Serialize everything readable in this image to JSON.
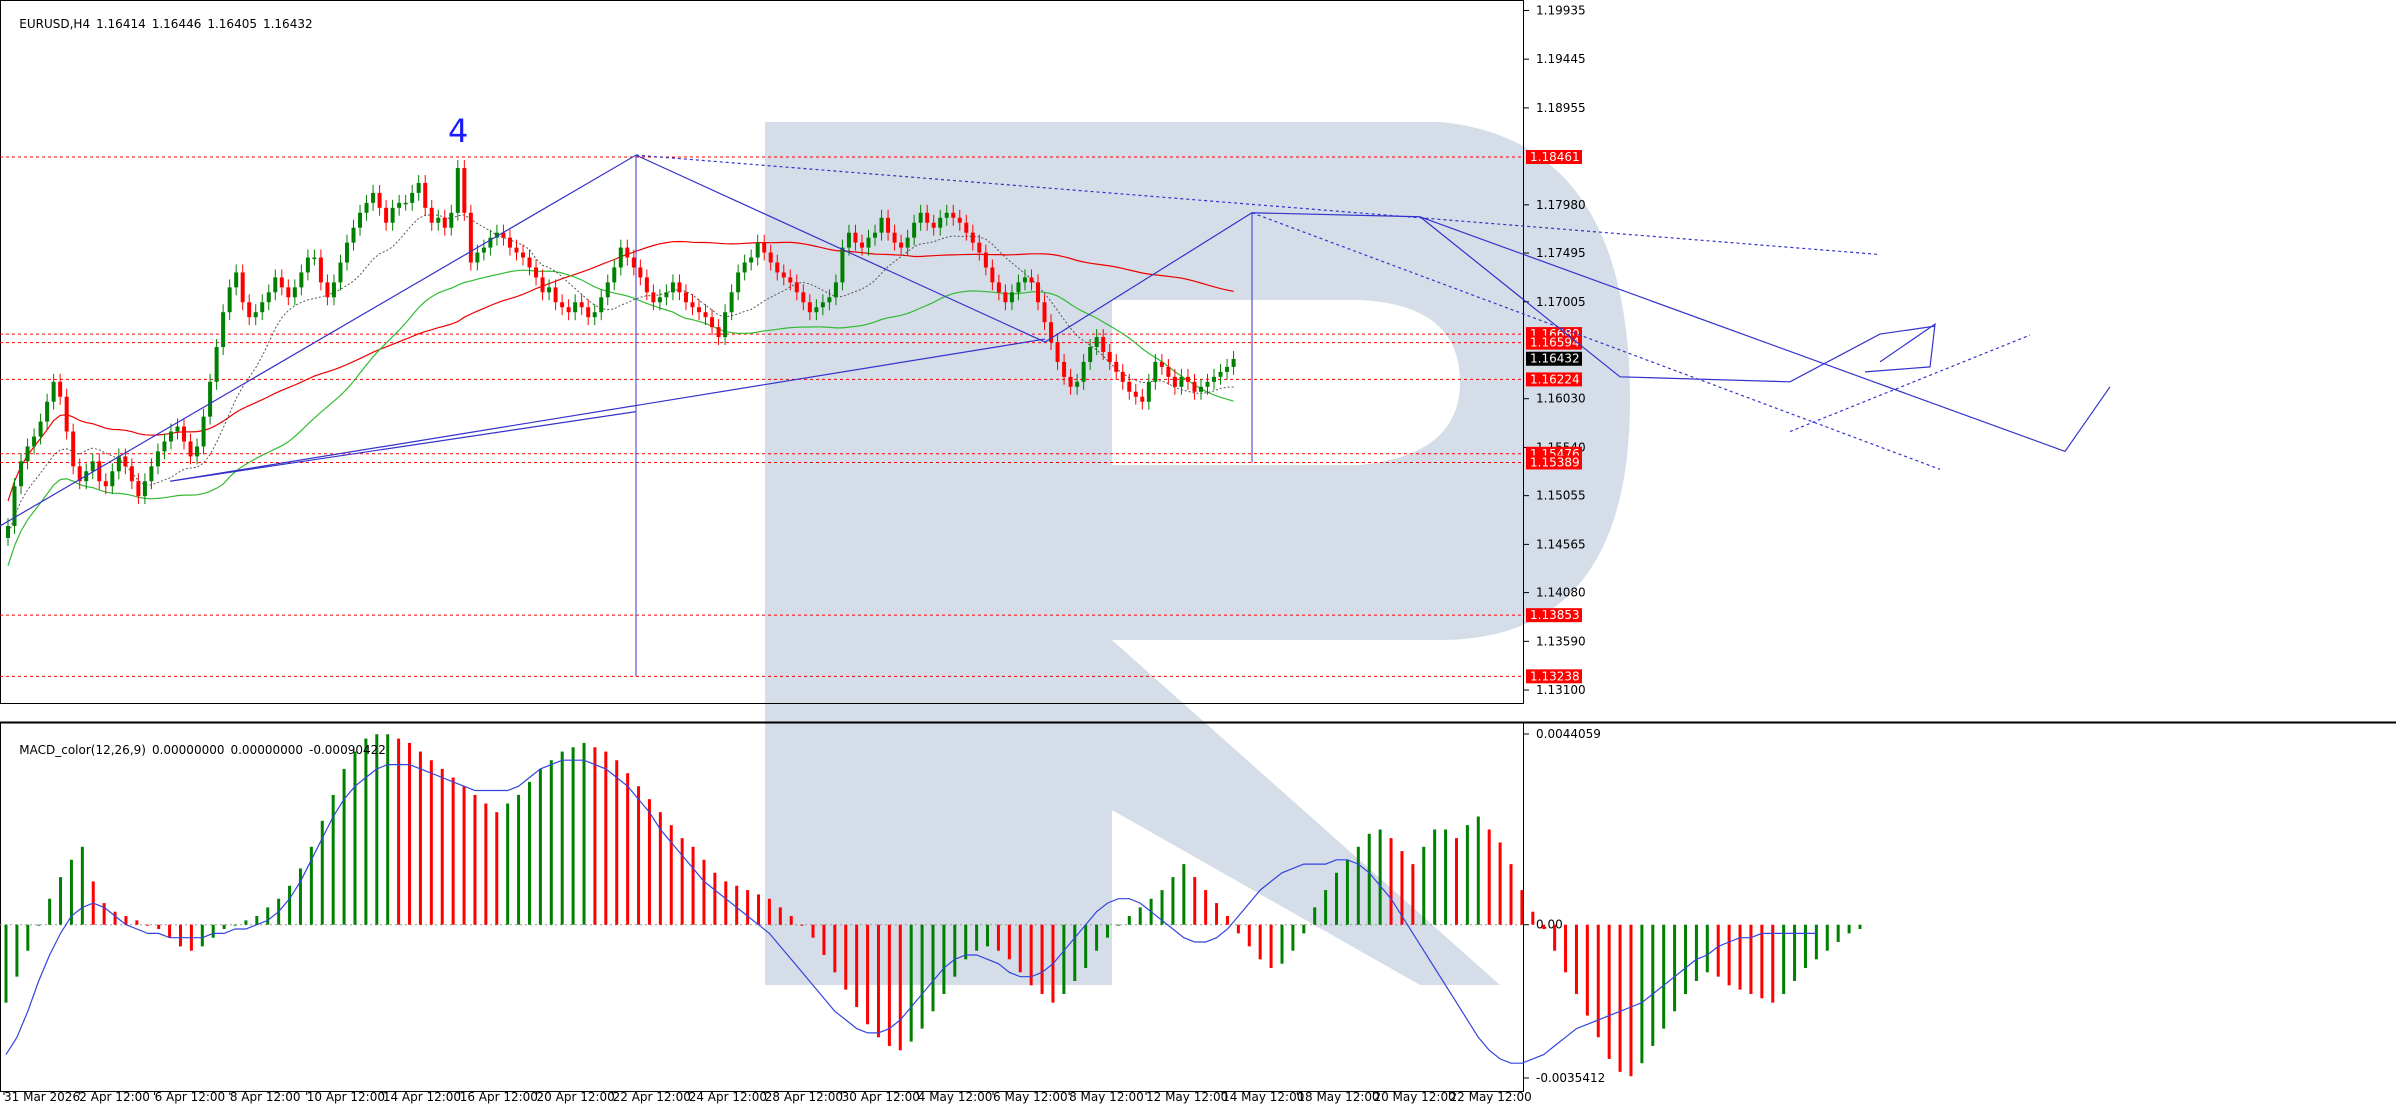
{
  "header": {
    "symbol": "EURUSD,H4",
    "open": "1.16414",
    "high": "1.16446",
    "low": "1.16405",
    "close": "1.16432"
  },
  "wave_label": "4",
  "indicator": {
    "name": "MACD_color(12,26,9)",
    "v1": "0.00000000",
    "v2": "0.00000000",
    "v3": "-0.00090422"
  },
  "colors": {
    "bull": "#008000",
    "bear": "#ff0000",
    "resistance": "#ff0000",
    "forecast": "#3333cc",
    "watermark": "#d5dde9",
    "ma_red": "#ee0000",
    "ma_green": "#33bb33"
  },
  "chart_data": [
    {
      "type": "candlestick",
      "title": "",
      "x_ticks": [
        "31 Mar 2026",
        "2 Apr 12:00",
        "6 Apr 12:00",
        "8 Apr 12:00",
        "10 Apr 12:00",
        "14 Apr 12:00",
        "16 Apr 12:00",
        "20 Apr 12:00",
        "22 Apr 12:00",
        "24 Apr 12:00",
        "28 Apr 12:00",
        "30 Apr 12:00",
        "4 May 12:00",
        "6 May 12:00",
        "8 May 12:00",
        "12 May 12:00",
        "14 May 12:00",
        "18 May 12:00",
        "20 May 12:00",
        "22 May 12:00"
      ],
      "y_ticks": [
        "1.19935",
        "1.19445",
        "1.18955",
        "1.17980",
        "1.17495",
        "1.17005",
        "1.16030",
        "1.15540",
        "1.15055",
        "1.14565",
        "1.14080",
        "1.13590",
        "1.13100"
      ],
      "ylim": [
        1.1302,
        1.2003
      ],
      "price_marks": [
        "1.18461",
        "1.16680",
        "1.16594",
        "1.16432",
        "1.16224",
        "1.15476",
        "1.15389",
        "1.13853",
        "1.13238"
      ],
      "current_price": "1.16432",
      "closes": [
        1.1475,
        1.1515,
        1.154,
        1.1555,
        1.1565,
        1.158,
        1.16,
        1.162,
        1.1605,
        1.157,
        1.1535,
        1.152,
        1.153,
        1.154,
        1.152,
        1.1515,
        1.153,
        1.1545,
        1.1535,
        1.152,
        1.1505,
        1.152,
        1.1535,
        1.155,
        1.156,
        1.157,
        1.1575,
        1.156,
        1.1545,
        1.1555,
        1.1585,
        1.162,
        1.1655,
        1.169,
        1.1715,
        1.173,
        1.17,
        1.1685,
        1.169,
        1.17,
        1.171,
        1.1725,
        1.1715,
        1.1705,
        1.1715,
        1.173,
        1.1745,
        1.1745,
        1.172,
        1.1705,
        1.172,
        1.174,
        1.176,
        1.1775,
        1.179,
        1.18,
        1.181,
        1.1795,
        1.178,
        1.1795,
        1.18,
        1.18,
        1.181,
        1.182,
        1.1795,
        1.178,
        1.1785,
        1.1775,
        1.179,
        1.1835,
        1.179,
        1.174,
        1.175,
        1.1755,
        1.1765,
        1.177,
        1.1765,
        1.1755,
        1.175,
        1.1745,
        1.1735,
        1.1725,
        1.171,
        1.1715,
        1.17,
        1.1695,
        1.169,
        1.17,
        1.1695,
        1.1685,
        1.169,
        1.1705,
        1.172,
        1.1735,
        1.1755,
        1.1745,
        1.1735,
        1.1725,
        1.171,
        1.17,
        1.1705,
        1.171,
        1.172,
        1.171,
        1.17,
        1.1695,
        1.169,
        1.1685,
        1.1675,
        1.1665,
        1.169,
        1.171,
        1.173,
        1.174,
        1.1745,
        1.176,
        1.175,
        1.174,
        1.173,
        1.1725,
        1.172,
        1.171,
        1.17,
        1.169,
        1.1695,
        1.17,
        1.1705,
        1.172,
        1.1755,
        1.177,
        1.176,
        1.1755,
        1.1765,
        1.177,
        1.1785,
        1.177,
        1.176,
        1.1755,
        1.1765,
        1.178,
        1.179,
        1.178,
        1.1775,
        1.1785,
        1.179,
        1.1785,
        1.178,
        1.177,
        1.176,
        1.175,
        1.1735,
        1.172,
        1.171,
        1.17,
        1.171,
        1.172,
        1.1725,
        1.172,
        1.17,
        1.168,
        1.166,
        1.164,
        1.1625,
        1.1615,
        1.162,
        1.164,
        1.1655,
        1.1665,
        1.165,
        1.164,
        1.163,
        1.162,
        1.161,
        1.1605,
        1.16,
        1.162,
        1.164,
        1.1635,
        1.1625,
        1.1615,
        1.1625,
        1.162,
        1.161,
        1.1615,
        1.162,
        1.1625,
        1.163,
        1.1635,
        1.1643
      ]
    },
    {
      "type": "bar",
      "title": "MACD_color(12,26,9)",
      "y_ticks": [
        "0.0044059",
        "0.00",
        "-0.0035412"
      ],
      "ylim": [
        -0.0035412,
        0.0044059
      ],
      "histogram": [
        -0.0018,
        -0.0012,
        -0.0006,
        0.0,
        0.0006,
        0.0011,
        0.0015,
        0.0018,
        0.001,
        0.0005,
        0.0003,
        0.0002,
        0.0001,
        0.0,
        -0.0001,
        -0.0003,
        -0.0005,
        -0.0006,
        -0.0005,
        -0.0003,
        -0.0001,
        0.0,
        0.0001,
        0.0002,
        0.0004,
        0.0006,
        0.0009,
        0.0013,
        0.0018,
        0.0024,
        0.003,
        0.0036,
        0.004,
        0.0043,
        0.0044,
        0.0044,
        0.0043,
        0.0042,
        0.004,
        0.0038,
        0.0036,
        0.0034,
        0.0032,
        0.003,
        0.0028,
        0.0026,
        0.0028,
        0.003,
        0.0033,
        0.0036,
        0.0038,
        0.004,
        0.0041,
        0.0042,
        0.0041,
        0.004,
        0.0038,
        0.0035,
        0.0032,
        0.0029,
        0.0026,
        0.0023,
        0.002,
        0.0018,
        0.0015,
        0.0012,
        0.001,
        0.0009,
        0.0008,
        0.0007,
        0.0006,
        0.0004,
        0.0002,
        0.0,
        -0.0003,
        -0.0007,
        -0.0011,
        -0.0015,
        -0.0019,
        -0.0023,
        -0.0026,
        -0.0028,
        -0.0029,
        -0.0027,
        -0.0024,
        -0.002,
        -0.0016,
        -0.0012,
        -0.0008,
        -0.0006,
        -0.0005,
        -0.0006,
        -0.0008,
        -0.0011,
        -0.0014,
        -0.0016,
        -0.0018,
        -0.0016,
        -0.0013,
        -0.001,
        -0.0006,
        -0.0003,
        0.0,
        0.0002,
        0.0004,
        0.0006,
        0.0008,
        0.0011,
        0.0014,
        0.0011,
        0.0008,
        0.0005,
        0.0002,
        -0.0002,
        -0.0005,
        -0.0008,
        -0.001,
        -0.0009,
        -0.0006,
        -0.0002,
        0.0004,
        0.0008,
        0.0012,
        0.0015,
        0.0018,
        0.0021,
        0.0022,
        0.002,
        0.0017,
        0.0014,
        0.0018,
        0.0022,
        0.0022,
        0.002,
        0.0023,
        0.0025,
        0.0022,
        0.0019,
        0.0014,
        0.0008,
        0.0003,
        -0.0001,
        -0.0006,
        -0.0011,
        -0.0016,
        -0.0021,
        -0.0026,
        -0.0031,
        -0.0034,
        -0.0035,
        -0.0032,
        -0.0028,
        -0.0024,
        -0.002,
        -0.0016,
        -0.0013,
        -0.0011,
        -0.0012,
        -0.0014,
        -0.0015,
        -0.0016,
        -0.0017,
        -0.0018,
        -0.0016,
        -0.0013,
        -0.001,
        -0.0008,
        -0.0006,
        -0.0004,
        -0.0002,
        -0.0001
      ],
      "signal": [
        -0.003,
        -0.0026,
        -0.002,
        -0.0013,
        -0.0007,
        -0.0002,
        0.0002,
        0.0004,
        0.0005,
        0.0004,
        0.0002,
        0.0,
        -0.0001,
        -0.0002,
        -0.0002,
        -0.0003,
        -0.0003,
        -0.0003,
        -0.0003,
        -0.0002,
        -0.0002,
        -0.0001,
        -0.0001,
        0.0,
        0.0001,
        0.0003,
        0.0006,
        0.001,
        0.0015,
        0.002,
        0.0025,
        0.0029,
        0.0032,
        0.0034,
        0.0036,
        0.0037,
        0.0037,
        0.0037,
        0.0036,
        0.0035,
        0.0034,
        0.0033,
        0.0032,
        0.0031,
        0.0031,
        0.0031,
        0.0031,
        0.0032,
        0.0034,
        0.0036,
        0.0037,
        0.0038,
        0.0038,
        0.0038,
        0.0037,
        0.0036,
        0.0034,
        0.0032,
        0.0029,
        0.0026,
        0.0022,
        0.0019,
        0.0016,
        0.0013,
        0.001,
        0.0008,
        0.0006,
        0.0004,
        0.0002,
        0.0,
        -0.0002,
        -0.0005,
        -0.0008,
        -0.0011,
        -0.0014,
        -0.0017,
        -0.002,
        -0.0022,
        -0.0024,
        -0.0025,
        -0.0025,
        -0.0024,
        -0.0022,
        -0.0019,
        -0.0016,
        -0.0013,
        -0.001,
        -0.0008,
        -0.0007,
        -0.0007,
        -0.0008,
        -0.0009,
        -0.0011,
        -0.0012,
        -0.0012,
        -0.0011,
        -0.0009,
        -0.0006,
        -0.0003,
        0.0,
        0.0003,
        0.0005,
        0.0006,
        0.0006,
        0.0005,
        0.0003,
        0.0001,
        -0.0001,
        -0.0003,
        -0.0004,
        -0.0004,
        -0.0003,
        -0.0001,
        0.0002,
        0.0005,
        0.0008,
        0.001,
        0.0012,
        0.0013,
        0.0014,
        0.0014,
        0.0014,
        0.0015,
        0.0015,
        0.0014,
        0.0012,
        0.0009,
        0.0006,
        0.0002,
        -0.0002,
        -0.0006,
        -0.001,
        -0.0014,
        -0.0018,
        -0.0022,
        -0.0026,
        -0.0029,
        -0.0031,
        -0.0032,
        -0.0032,
        -0.0031,
        -0.003,
        -0.0028,
        -0.0026,
        -0.0024,
        -0.0023,
        -0.0022,
        -0.0021,
        -0.002,
        -0.0019,
        -0.0018,
        -0.0016,
        -0.0014,
        -0.0012,
        -0.001,
        -0.0008,
        -0.0007,
        -0.0005,
        -0.0004,
        -0.0003,
        -0.0003,
        -0.0002,
        -0.0002,
        -0.0002,
        -0.0002,
        -0.0002,
        -0.0002
      ]
    }
  ]
}
